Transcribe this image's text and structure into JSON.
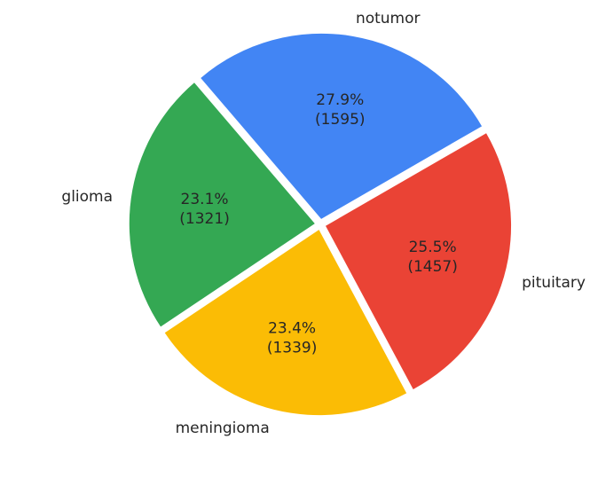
{
  "chart_data": {
    "type": "pie",
    "title": "",
    "slices": [
      {
        "label": "notumor",
        "value": 1595,
        "percent": "27.9%",
        "count_text": "(1595)",
        "color": "#4285F4"
      },
      {
        "label": "glioma",
        "value": 1321,
        "percent": "23.1%",
        "count_text": "(1321)",
        "color": "#34A853"
      },
      {
        "label": "meningioma",
        "value": 1339,
        "percent": "23.4%",
        "count_text": "(1339)",
        "color": "#FBBC05"
      },
      {
        "label": "pituitary",
        "value": 1457,
        "percent": "25.5%",
        "count_text": "(1457)",
        "color": "#EA4335"
      }
    ],
    "exploded": true,
    "legend": "none"
  }
}
